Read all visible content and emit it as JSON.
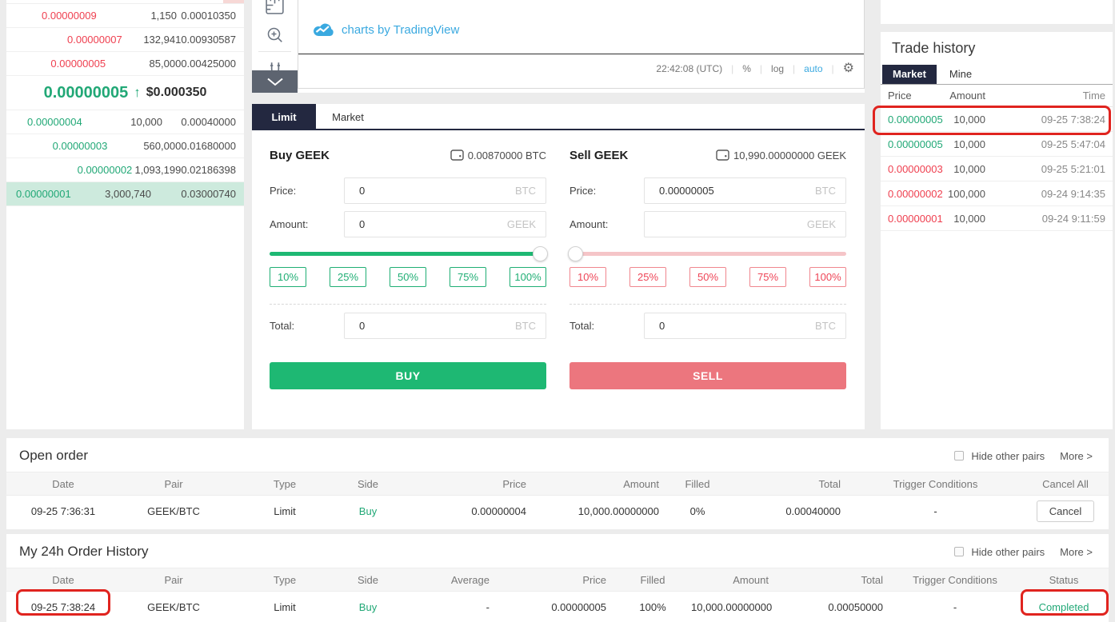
{
  "colors": {
    "buy_green": "#21a876",
    "buy_button_green": "#1eb873",
    "sell_red": "#ef4050",
    "sell_button_salmon": "#ec767e",
    "tab_dark_navy": "#232840",
    "tradingview_blue": "#3aa9e0",
    "annotation_red": "#e0241f",
    "ask_depth_pink": "#f7d8d6",
    "bid_depth_green": "#cdeadd"
  },
  "orderbook": {
    "asks": [
      {
        "price": "0.00000009",
        "amount": "1,150",
        "total": "0.00010350",
        "depth": 32
      },
      {
        "price": "0.00000007",
        "amount": "132,941",
        "total": "0.00930587",
        "depth": 76
      },
      {
        "price": "0.00000005",
        "amount": "85,000",
        "total": "0.00425000",
        "depth": 45
      }
    ],
    "last_price": "0.00000005",
    "direction": "↑",
    "fiat_price": "$0.000350",
    "bids": [
      {
        "price": "0.00000004",
        "amount": "10,000",
        "total": "0.00040000",
        "depth": 14
      },
      {
        "price": "0.00000003",
        "amount": "560,000",
        "total": "0.01680000",
        "depth": 48
      },
      {
        "price": "0.00000002",
        "amount": "1,093,199",
        "total": "0.02186398",
        "depth": 108
      },
      {
        "price": "0.00000001",
        "amount": "3,000,740",
        "total": "0.03000740",
        "depth": 297
      }
    ]
  },
  "chart": {
    "logo_text": "charts by TradingView",
    "clock": "22:42:08 (UTC)",
    "sep": "|",
    "percent_label": "%",
    "log_label": "log",
    "auto_label": "auto",
    "gear_icon": "⚙"
  },
  "form": {
    "tabs": {
      "limit": "Limit",
      "market": "Market"
    },
    "buy": {
      "title": "Buy GEEK",
      "balance": "0.00870000 BTC",
      "price_label": "Price:",
      "price_value": "0",
      "price_unit": "BTC",
      "amount_label": "Amount:",
      "amount_value": "0",
      "amount_unit": "GEEK",
      "p10": "10%",
      "p25": "25%",
      "p50": "50%",
      "p75": "75%",
      "p100": "100%",
      "total_label": "Total:",
      "total_value": "0",
      "total_unit": "BTC",
      "submit": "BUY",
      "slider_fill": "100%"
    },
    "sell": {
      "title": "Sell GEEK",
      "balance": "10,990.00000000 GEEK",
      "price_label": "Price:",
      "price_value": "0.00000005",
      "price_unit": "BTC",
      "amount_label": "Amount:",
      "amount_value": "",
      "amount_unit": "GEEK",
      "p10": "10%",
      "p25": "25%",
      "p50": "50%",
      "p75": "75%",
      "p100": "100%",
      "total_label": "Total:",
      "total_value": "0",
      "total_unit": "BTC",
      "submit": "SELL",
      "slider_fill": "0%"
    }
  },
  "trade_history": {
    "title": "Trade history",
    "tab_market": "Market",
    "tab_mine": "Mine",
    "col_price": "Price",
    "col_amount": "Amount",
    "col_time": "Time",
    "rows": [
      {
        "price": "0.00000005",
        "amount": "10,000",
        "time": "09-25 7:38:24",
        "side": "buy"
      },
      {
        "price": "0.00000005",
        "amount": "10,000",
        "time": "09-25 5:47:04",
        "side": "buy"
      },
      {
        "price": "0.00000003",
        "amount": "10,000",
        "time": "09-25 5:21:01",
        "side": "sell"
      },
      {
        "price": "0.00000002",
        "amount": "100,000",
        "time": "09-24 9:14:35",
        "side": "sell"
      },
      {
        "price": "0.00000001",
        "amount": "10,000",
        "time": "09-24 9:11:59",
        "side": "sell"
      }
    ]
  },
  "open_order": {
    "title": "Open order",
    "hide_label": "Hide other pairs",
    "more_label": "More >",
    "columns": {
      "date": "Date",
      "pair": "Pair",
      "type": "Type",
      "side": "Side",
      "price": "Price",
      "amount": "Amount",
      "filled": "Filled",
      "total": "Total",
      "trigger": "Trigger Conditions",
      "cancel_all": "Cancel All"
    },
    "row": {
      "date": "09-25 7:36:31",
      "pair": "GEEK/BTC",
      "type": "Limit",
      "side": "Buy",
      "price": "0.00000004",
      "amount": "10,000.00000000",
      "filled": "0%",
      "total": "0.00040000",
      "trigger": "-",
      "action": "Cancel"
    }
  },
  "order_history": {
    "title": "My 24h Order History",
    "hide_label": "Hide other pairs",
    "more_label": "More >",
    "columns": {
      "date": "Date",
      "pair": "Pair",
      "type": "Type",
      "side": "Side",
      "average": "Average",
      "price": "Price",
      "filled": "Filled",
      "amount": "Amount",
      "total": "Total",
      "trigger": "Trigger Conditions",
      "status": "Status"
    },
    "row": {
      "date": "09-25 7:38:24",
      "pair": "GEEK/BTC",
      "type": "Limit",
      "side": "Buy",
      "average": "-",
      "price": "0.00000005",
      "filled": "100%",
      "amount": "10,000.00000000",
      "total": "0.00050000",
      "trigger": "-",
      "status": "Completed"
    }
  }
}
